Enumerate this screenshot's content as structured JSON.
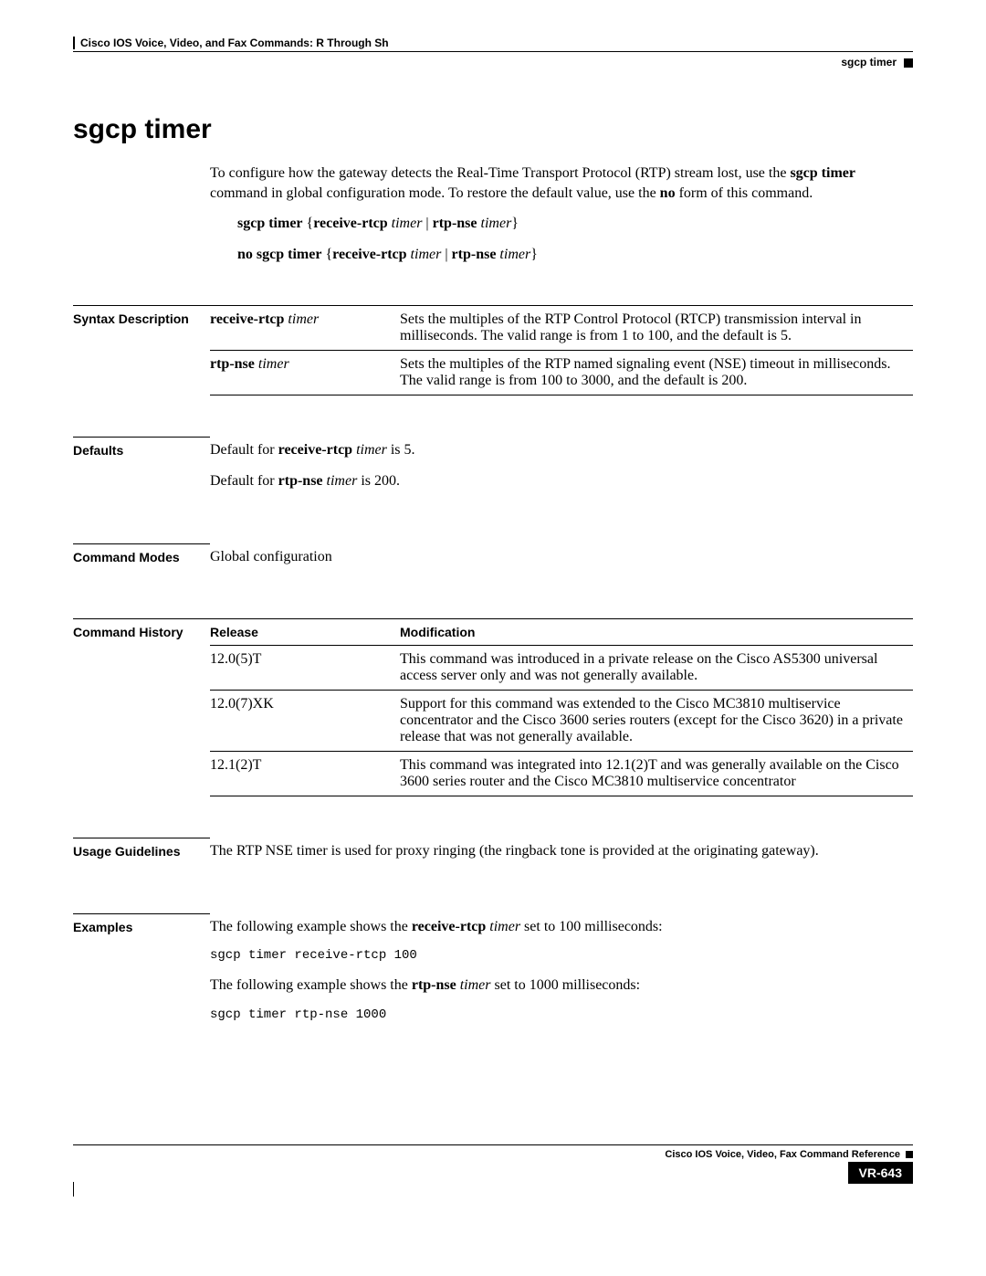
{
  "header": {
    "chapter": "Cisco IOS Voice, Video, and Fax Commands: R Through Sh",
    "topic": "sgcp timer"
  },
  "title": "sgcp timer",
  "intro": {
    "p1a": "To configure how the gateway detects the Real-Time Transport Protocol (RTP) stream lost, use the ",
    "p1b": "sgcp timer",
    "p1c": " command in global configuration mode. To restore the default value, use the ",
    "p1d": "no",
    "p1e": " form of this command."
  },
  "syntax": {
    "l1": {
      "a": "sgcp timer",
      "b": " {",
      "c": "receive-rtcp",
      "d": " ",
      "e": "timer",
      "f": " | ",
      "g": "rtp-nse",
      "h": " ",
      "i": "timer",
      "j": "}"
    },
    "l2": {
      "a": "no sgcp timer",
      "b": " {",
      "c": "receive-rtcp",
      "d": " ",
      "e": "timer",
      "f": " | ",
      "g": "rtp-nse",
      "h": " ",
      "i": "timer",
      "j": "}"
    }
  },
  "sections": {
    "syntax_desc_label": "Syntax Description",
    "defaults_label": "Defaults",
    "modes_label": "Command Modes",
    "history_label": "Command History",
    "usage_label": "Usage Guidelines",
    "examples_label": "Examples"
  },
  "syntax_table": {
    "rows": [
      {
        "kw": "receive-rtcp",
        "arg": "timer",
        "desc": "Sets the multiples of the RTP Control Protocol (RTCP) transmission interval in milliseconds. The valid range is from 1 to 100, and the default is 5."
      },
      {
        "kw": "rtp-nse",
        "arg": "timer",
        "desc": "Sets the multiples of the RTP named signaling event (NSE) timeout in milliseconds. The valid range is from 100 to 3000, and the default is 200."
      }
    ]
  },
  "defaults": {
    "p1a": "Default for ",
    "p1b": "receive-rtcp",
    "p1c": " ",
    "p1d": "timer",
    "p1e": " is 5.",
    "p2a": "Default for ",
    "p2b": "rtp-nse",
    "p2c": " ",
    "p2d": "timer",
    "p2e": " is 200."
  },
  "modes": {
    "text": "Global configuration"
  },
  "history": {
    "col1": "Release",
    "col2": "Modification",
    "rows": [
      {
        "rel": "12.0(5)T",
        "mod": "This command was introduced in a private release on the Cisco AS5300 universal access server only and was not generally available."
      },
      {
        "rel": "12.0(7)XK",
        "mod": "Support for this command was extended to the Cisco MC3810 multiservice concentrator and the Cisco 3600 series routers (except for the Cisco 3620) in a private release that was not generally available."
      },
      {
        "rel": "12.1(2)T",
        "mod": "This command was integrated into 12.1(2)T and was generally available on the Cisco 3600 series router and the Cisco MC3810 multiservice concentrator"
      }
    ]
  },
  "usage": {
    "text": "The RTP NSE timer is used for proxy ringing (the ringback tone is provided at the originating gateway)."
  },
  "examples": {
    "p1a": "The following example shows the ",
    "p1b": "receive-rtcp",
    "p1c": " ",
    "p1d": "timer",
    "p1e": " set to 100 milliseconds:",
    "code1": "sgcp timer receive-rtcp 100",
    "p2a": "The following example shows the ",
    "p2b": "rtp-nse",
    "p2c": " ",
    "p2d": "timer",
    "p2e": " set to 1000 milliseconds:",
    "code2": "sgcp timer rtp-nse 1000"
  },
  "footer": {
    "ref": "Cisco IOS Voice, Video, Fax Command Reference",
    "page": "VR-643"
  }
}
